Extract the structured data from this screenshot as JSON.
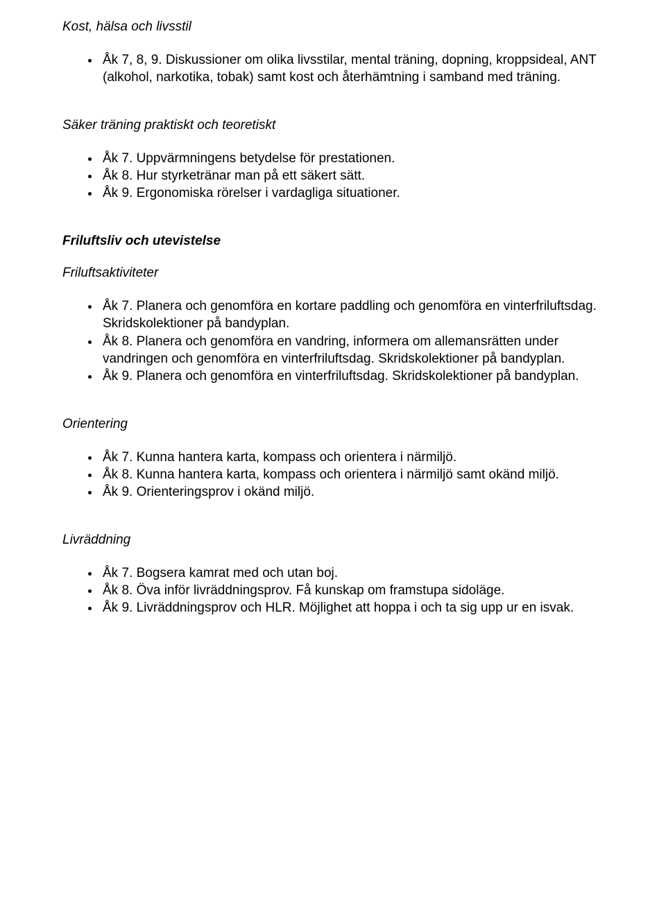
{
  "sections": {
    "kost": {
      "title": "Kost, hälsa och livsstil",
      "items": [
        "Åk 7, 8, 9. Diskussioner om olika livsstilar, mental träning, dopning, kroppsideal, ANT (alkohol, narkotika, tobak) samt kost och återhämtning i samband med träning."
      ]
    },
    "saker": {
      "title": "Säker träning praktiskt och teoretiskt",
      "items": [
        "Åk 7. Uppvärmningens betydelse för prestationen.",
        "Åk 8. Hur styrketränar man på ett säkert sätt.",
        "Åk 9. Ergonomiska rörelser i vardagliga situationer."
      ]
    },
    "friluft_header": "Friluftsliv och utevistelse",
    "friluft_akt": {
      "title": "Friluftsaktiviteter",
      "items": [
        "Åk 7. Planera och genomföra en kortare paddling och genomföra en vinterfriluftsdag. Skridskolektioner på bandyplan.",
        "Åk 8. Planera och genomföra en vandring, informera om allemansrätten under vandringen och genomföra en vinterfriluftsdag. Skridskolektioner på bandyplan.",
        "Åk 9. Planera och genomföra en vinterfriluftsdag. Skridskolektioner på bandyplan."
      ]
    },
    "orientering": {
      "title": "Orientering",
      "items": [
        "Åk 7. Kunna hantera karta, kompass och orientera i närmiljö.",
        "Åk 8. Kunna hantera karta, kompass och orientera i närmiljö samt okänd miljö.",
        "Åk 9. Orienteringsprov i okänd miljö."
      ]
    },
    "livraddning": {
      "title": "Livräddning",
      "items": [
        "Åk 7. Bogsera kamrat med och utan boj.",
        "Åk 8. Öva inför livräddningsprov. Få kunskap om framstupa sidoläge.",
        "Åk 9. Livräddningsprov och HLR. Möjlighet att hoppa i och ta sig upp ur en isvak."
      ]
    }
  }
}
